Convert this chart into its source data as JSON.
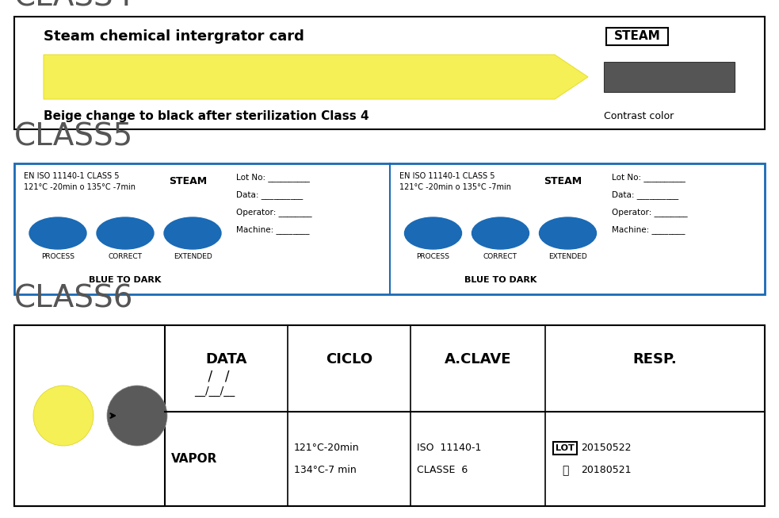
{
  "bg_color": "#ffffff",
  "class4": {
    "title": "CLASS4",
    "box_title": "Steam chemical intergrator card",
    "steam_label": "STEAM",
    "arrow_color": "#f5f055",
    "arrow_edge": "#e8e030",
    "dark_rect_color": "#555555",
    "bottom_text": "Beige change to black after sterilization Class 4",
    "contrast_text": "Contrast color"
  },
  "class5": {
    "title": "CLASS5",
    "iso_text": "EN ISO 11140-1 CLASS 5",
    "temp_text": "121°C -20min o 135°C -7min",
    "steam_label": "STEAM",
    "ellipse_color": "#1a6ab5",
    "labels": [
      "PROCESS",
      "CORRECT",
      "EXTENDED"
    ],
    "bottom_text": "BLUE TO DARK",
    "lot_text": "Lot No: __________",
    "data_text": "Data: __________",
    "operator_text": "Operator: ________",
    "machine_text": "Machine: ________"
  },
  "class6": {
    "title": "CLASS6",
    "col_headers": [
      "DATA",
      "CICLO",
      "A.CLAVE",
      "RESP."
    ],
    "yellow_circle_color": "#f5f055",
    "gray_circle_color": "#5a5a5a",
    "vapor_text": "VAPOR",
    "temp_text1": "121°C-20min",
    "temp_text2": "134°C-7 min",
    "iso_text1": "ISO  11140-1",
    "iso_text2": "CLASSE  6",
    "lot_box": "LOT",
    "lot_num": "20150522",
    "exp_num": "20180521"
  }
}
